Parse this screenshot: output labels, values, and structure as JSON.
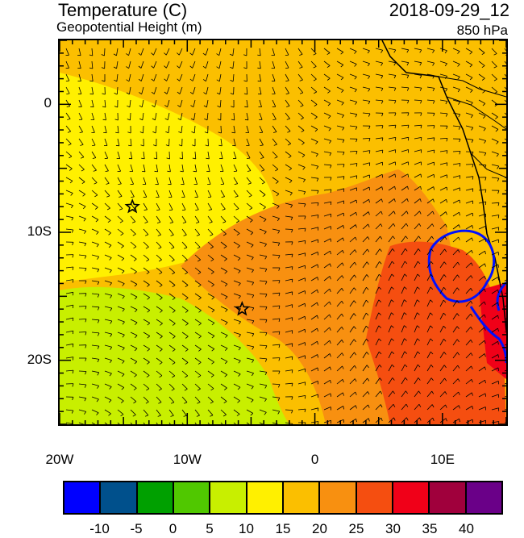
{
  "header": {
    "title": "Temperature (C)",
    "subtitle": "Geopotential Height (m)",
    "datetime": "2018-09-29_12",
    "level": "850 hPa"
  },
  "axes": {
    "x_ticks": [
      "20W",
      "10W",
      "0",
      "10E"
    ],
    "y_ticks": [
      "0",
      "10S",
      "20S"
    ],
    "lon_range": [
      -20,
      15
    ],
    "lat_range": [
      -25,
      5
    ]
  },
  "markers": {
    "stars": [
      {
        "lon": -14.3,
        "lat": -8.0
      },
      {
        "lon": -5.7,
        "lat": -16.0
      }
    ]
  },
  "colorbar": {
    "colors": [
      "#0000ff",
      "#00508c",
      "#00a000",
      "#50c800",
      "#c8ef00",
      "#fff000",
      "#fbbf00",
      "#f89010",
      "#f54e10",
      "#f00018",
      "#a0003c",
      "#6a0088"
    ],
    "labels": [
      "-10",
      "-5",
      "0",
      "5",
      "10",
      "15",
      "20",
      "25",
      "30",
      "35",
      "40"
    ]
  },
  "chart_data": {
    "type": "heatmap",
    "title": "Temperature (C)",
    "subtitle": "Geopotential Height (m)",
    "xlabel": "",
    "ylabel": "",
    "xlim": [
      -20,
      15
    ],
    "ylim": [
      -25,
      5
    ],
    "legend": "bottom",
    "levels": [
      -10,
      -5,
      0,
      5,
      10,
      15,
      20,
      25,
      30,
      35,
      40
    ],
    "regions": [
      {
        "name": "",
        "value_range": [
          5,
          10
        ],
        "area": "southwest"
      },
      {
        "name": "",
        "value_range": [
          10,
          15
        ],
        "area": "north-central band"
      },
      {
        "name": "",
        "value_range": [
          15,
          20
        ],
        "area": "background"
      },
      {
        "name": "",
        "value_range": [
          20,
          25
        ],
        "area": "central tongue"
      },
      {
        "name": "",
        "value_range": [
          25,
          30
        ],
        "area": "east"
      },
      {
        "name": "",
        "value_range": [
          30,
          35
        ],
        "area": "coast"
      }
    ]
  }
}
